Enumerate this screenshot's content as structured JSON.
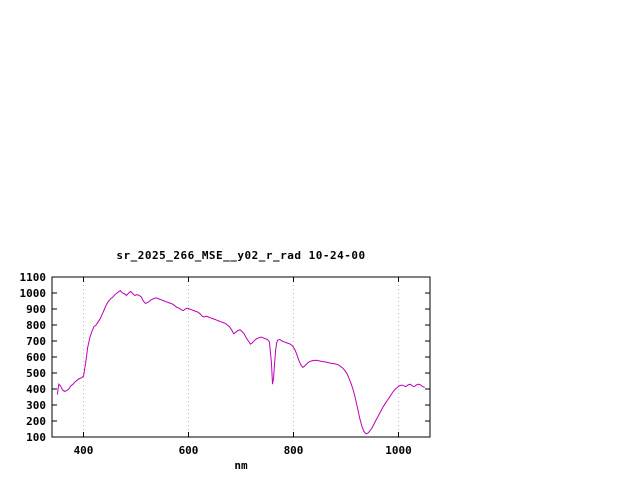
{
  "chart_data": {
    "type": "line",
    "title": "sr_2025_266_MSE__y02_r_rad 10-24-00",
    "xlabel": "nm",
    "ylabel": "",
    "xlim": [
      340,
      1060
    ],
    "ylim": [
      100,
      1100
    ],
    "x_ticks": [
      400,
      600,
      800,
      1000
    ],
    "y_ticks": [
      100,
      200,
      300,
      400,
      500,
      600,
      700,
      800,
      900,
      1000,
      1100
    ],
    "grid": "vertical-dotted",
    "grid_color": "#bbbbbb",
    "line_color": "#bb00bb",
    "legend": "none",
    "points": [
      [
        350,
        365
      ],
      [
        353,
        430
      ],
      [
        356,
        420
      ],
      [
        360,
        395
      ],
      [
        364,
        385
      ],
      [
        368,
        390
      ],
      [
        372,
        400
      ],
      [
        376,
        420
      ],
      [
        380,
        430
      ],
      [
        384,
        445
      ],
      [
        388,
        455
      ],
      [
        392,
        465
      ],
      [
        396,
        470
      ],
      [
        400,
        480
      ],
      [
        404,
        560
      ],
      [
        408,
        660
      ],
      [
        412,
        720
      ],
      [
        416,
        760
      ],
      [
        420,
        790
      ],
      [
        424,
        800
      ],
      [
        428,
        820
      ],
      [
        432,
        840
      ],
      [
        436,
        870
      ],
      [
        440,
        900
      ],
      [
        444,
        930
      ],
      [
        448,
        950
      ],
      [
        452,
        965
      ],
      [
        456,
        975
      ],
      [
        460,
        990
      ],
      [
        464,
        1000
      ],
      [
        468,
        1010
      ],
      [
        470,
        1015
      ],
      [
        474,
        1000
      ],
      [
        478,
        995
      ],
      [
        482,
        985
      ],
      [
        486,
        1000
      ],
      [
        490,
        1010
      ],
      [
        494,
        995
      ],
      [
        498,
        985
      ],
      [
        502,
        990
      ],
      [
        506,
        985
      ],
      [
        510,
        975
      ],
      [
        514,
        950
      ],
      [
        518,
        935
      ],
      [
        522,
        940
      ],
      [
        526,
        950
      ],
      [
        530,
        960
      ],
      [
        534,
        965
      ],
      [
        538,
        970
      ],
      [
        542,
        965
      ],
      [
        546,
        960
      ],
      [
        550,
        955
      ],
      [
        554,
        950
      ],
      [
        558,
        945
      ],
      [
        562,
        940
      ],
      [
        566,
        935
      ],
      [
        570,
        930
      ],
      [
        574,
        920
      ],
      [
        578,
        910
      ],
      [
        582,
        905
      ],
      [
        586,
        895
      ],
      [
        590,
        890
      ],
      [
        594,
        900
      ],
      [
        598,
        905
      ],
      [
        602,
        900
      ],
      [
        606,
        895
      ],
      [
        610,
        890
      ],
      [
        614,
        885
      ],
      [
        618,
        880
      ],
      [
        622,
        870
      ],
      [
        626,
        855
      ],
      [
        630,
        850
      ],
      [
        634,
        855
      ],
      [
        638,
        850
      ],
      [
        642,
        845
      ],
      [
        646,
        840
      ],
      [
        650,
        835
      ],
      [
        654,
        830
      ],
      [
        658,
        825
      ],
      [
        662,
        820
      ],
      [
        666,
        815
      ],
      [
        670,
        810
      ],
      [
        674,
        800
      ],
      [
        678,
        790
      ],
      [
        682,
        770
      ],
      [
        686,
        745
      ],
      [
        690,
        755
      ],
      [
        694,
        765
      ],
      [
        698,
        770
      ],
      [
        702,
        760
      ],
      [
        706,
        745
      ],
      [
        710,
        720
      ],
      [
        714,
        700
      ],
      [
        718,
        680
      ],
      [
        722,
        690
      ],
      [
        726,
        705
      ],
      [
        730,
        715
      ],
      [
        734,
        720
      ],
      [
        738,
        725
      ],
      [
        742,
        720
      ],
      [
        746,
        715
      ],
      [
        750,
        710
      ],
      [
        754,
        695
      ],
      [
        758,
        560
      ],
      [
        760,
        430
      ],
      [
        762,
        470
      ],
      [
        764,
        560
      ],
      [
        766,
        640
      ],
      [
        768,
        690
      ],
      [
        770,
        705
      ],
      [
        774,
        710
      ],
      [
        778,
        700
      ],
      [
        782,
        695
      ],
      [
        786,
        690
      ],
      [
        790,
        685
      ],
      [
        794,
        680
      ],
      [
        798,
        670
      ],
      [
        802,
        650
      ],
      [
        806,
        620
      ],
      [
        810,
        580
      ],
      [
        814,
        550
      ],
      [
        818,
        535
      ],
      [
        822,
        545
      ],
      [
        826,
        560
      ],
      [
        830,
        570
      ],
      [
        834,
        575
      ],
      [
        838,
        578
      ],
      [
        842,
        580
      ],
      [
        846,
        578
      ],
      [
        850,
        575
      ],
      [
        854,
        572
      ],
      [
        858,
        570
      ],
      [
        862,
        568
      ],
      [
        866,
        565
      ],
      [
        870,
        562
      ],
      [
        874,
        560
      ],
      [
        878,
        558
      ],
      [
        882,
        555
      ],
      [
        886,
        550
      ],
      [
        890,
        540
      ],
      [
        894,
        530
      ],
      [
        898,
        515
      ],
      [
        902,
        495
      ],
      [
        906,
        465
      ],
      [
        910,
        430
      ],
      [
        914,
        390
      ],
      [
        918,
        340
      ],
      [
        922,
        280
      ],
      [
        926,
        220
      ],
      [
        930,
        170
      ],
      [
        934,
        135
      ],
      [
        938,
        120
      ],
      [
        942,
        125
      ],
      [
        946,
        140
      ],
      [
        950,
        160
      ],
      [
        954,
        185
      ],
      [
        958,
        210
      ],
      [
        962,
        235
      ],
      [
        966,
        260
      ],
      [
        970,
        285
      ],
      [
        974,
        305
      ],
      [
        978,
        325
      ],
      [
        982,
        345
      ],
      [
        986,
        365
      ],
      [
        990,
        385
      ],
      [
        994,
        400
      ],
      [
        998,
        410
      ],
      [
        1002,
        420
      ],
      [
        1006,
        425
      ],
      [
        1010,
        420
      ],
      [
        1014,
        415
      ],
      [
        1018,
        425
      ],
      [
        1022,
        430
      ],
      [
        1026,
        420
      ],
      [
        1030,
        415
      ],
      [
        1034,
        425
      ],
      [
        1038,
        430
      ],
      [
        1042,
        425
      ],
      [
        1046,
        415
      ],
      [
        1050,
        410
      ]
    ]
  }
}
